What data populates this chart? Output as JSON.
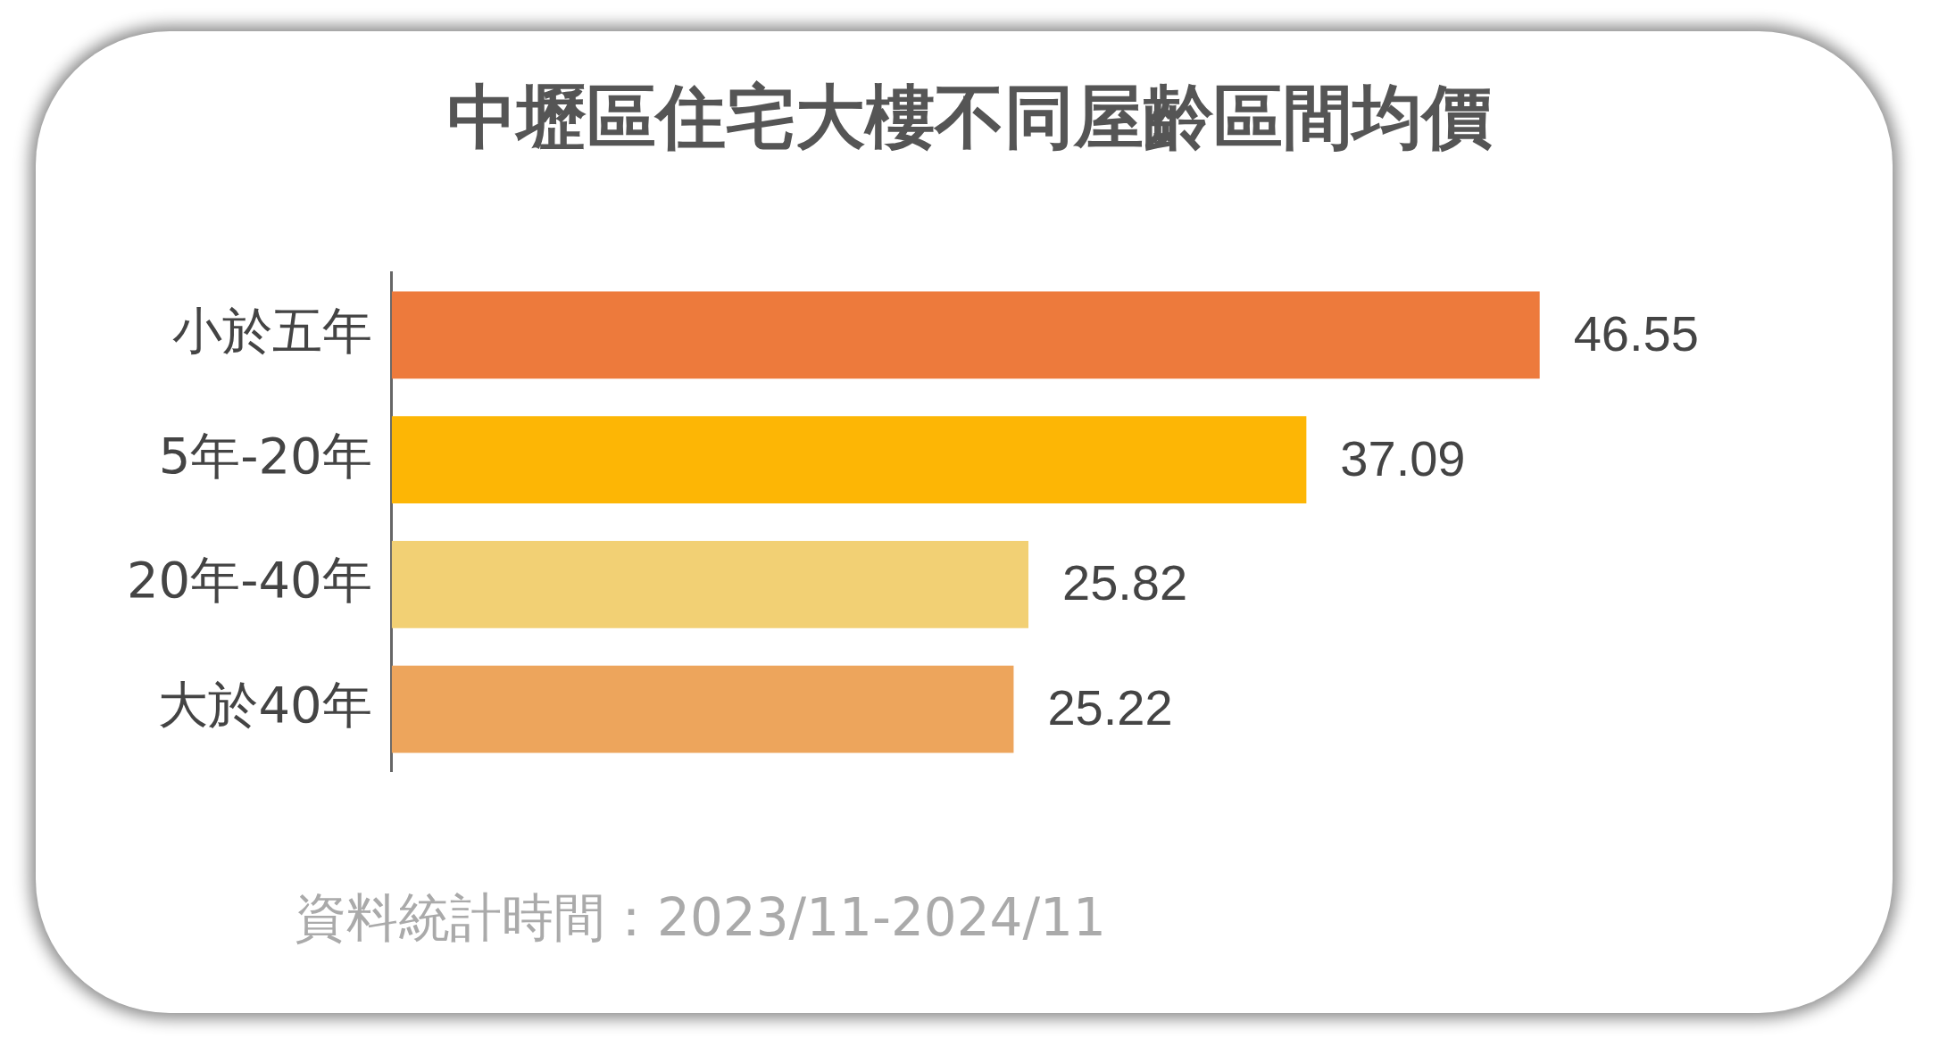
{
  "chart_data": {
    "type": "bar",
    "orientation": "horizontal",
    "title": "中壢區住宅大樓不同屋齡區間均價",
    "categories": [
      "小於五年",
      "5年-20年",
      "20年-40年",
      "大於40年"
    ],
    "values": [
      46.55,
      37.09,
      25.82,
      25.22
    ],
    "colors": [
      "#ed7a3c",
      "#fdb605",
      "#f2d074",
      "#eda55c"
    ],
    "data_labels": true,
    "legend": false,
    "annotations": [
      "資料統計時間：2023/11-2024/11"
    ]
  }
}
